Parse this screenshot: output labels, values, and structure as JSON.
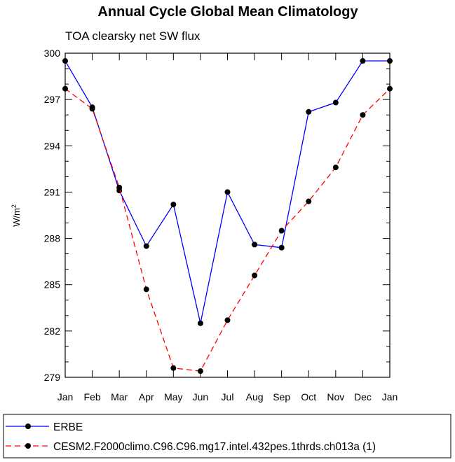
{
  "chart_data": {
    "type": "line",
    "title": "Annual Cycle Global Mean Climatology",
    "subtitle": "TOA clearsky net SW flux",
    "ylabel_main": "W/m",
    "ylabel_sup": "2",
    "xlabel": "",
    "categories": [
      "Jan",
      "Feb",
      "Mar",
      "Apr",
      "May",
      "Jun",
      "Jul",
      "Aug",
      "Sep",
      "Oct",
      "Nov",
      "Dec",
      "Jan"
    ],
    "ylim": [
      279,
      300
    ],
    "yticks": [
      279,
      282,
      285,
      288,
      291,
      294,
      297,
      300
    ],
    "grid": false,
    "legend_position": "bottom",
    "series": [
      {
        "name": "ERBE",
        "color": "#0000ff",
        "dash": "solid",
        "values": [
          299.5,
          296.5,
          291.1,
          287.5,
          290.2,
          282.5,
          291.0,
          287.6,
          287.4,
          296.2,
          296.8,
          299.5,
          299.5
        ]
      },
      {
        "name": "CESM2.F2000climo.C96.C96.mg17.intel.432pes.1thrds.ch013a (1)",
        "color": "#ff0000",
        "dash": "dashed",
        "values": [
          297.7,
          296.4,
          291.3,
          284.7,
          279.6,
          279.4,
          282.7,
          285.6,
          288.5,
          290.4,
          292.6,
          296.0,
          297.7
        ]
      }
    ]
  }
}
